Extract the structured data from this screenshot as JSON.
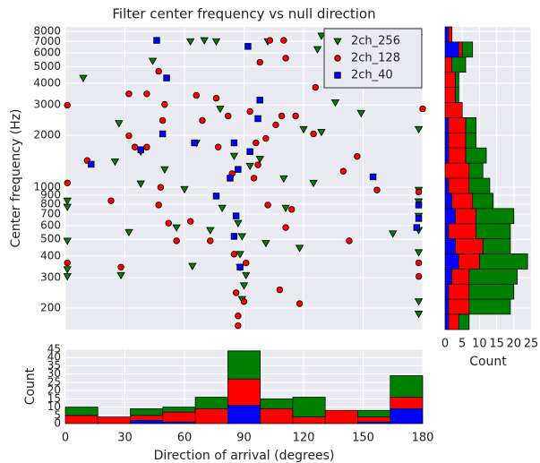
{
  "chart_data": [
    {
      "type": "scatter",
      "title": "Filter center frequency vs null direction",
      "ylabel": "Center frequency (Hz)",
      "xlim": [
        0,
        180
      ],
      "xticks": [
        0,
        30,
        60,
        90,
        120,
        150,
        180
      ],
      "xticklabels": false,
      "ylim": [
        150,
        8500
      ],
      "yscale": "log",
      "yticks": [
        200,
        300,
        400,
        500,
        600,
        700,
        800,
        900,
        1000,
        2000,
        3000,
        4000,
        5000,
        6000,
        7000,
        8000
      ],
      "grid": true,
      "legend": "upper right",
      "series": [
        {
          "name": "2ch_256",
          "color": "#008000",
          "marker": "triangle-down",
          "x": [
            9,
            27,
            25,
            1,
            1,
            1,
            1,
            1,
            28,
            38,
            38,
            44,
            63,
            70,
            76,
            78,
            66,
            60,
            64,
            73,
            79,
            85,
            87,
            88,
            89,
            88,
            90,
            89,
            91,
            93,
            98,
            102,
            101,
            110,
            111,
            118,
            120,
            125,
            129,
            136,
            127,
            129,
            149,
            165,
            178,
            178,
            178,
            178,
            178,
            178,
            178,
            178,
            178,
            32,
            56,
            50
          ],
          "values": [
            4300,
            2350,
            1410,
            836,
            770,
            490,
            335,
            305,
            310,
            1050,
            1610,
            5400,
            7000,
            7100,
            7000,
            2850,
            1810,
            975,
            350,
            565,
            760,
            1520,
            620,
            410,
            520,
            345,
            270,
            225,
            310,
            1330,
            1460,
            7000,
            475,
            1125,
            760,
            445,
            2170,
            1060,
            2090,
            3100,
            6300,
            7550,
            2690,
            540,
            2170,
            965,
            827,
            683,
            565,
            420,
            218,
            185,
            7400,
            550,
            585,
            1270
          ]
        },
        {
          "name": "2ch_128",
          "color": "#ff0000",
          "marker": "circle",
          "x": [
            1,
            1,
            1,
            11,
            23,
            28,
            32,
            32,
            35,
            41,
            41,
            47,
            49,
            50,
            48,
            47,
            52,
            56,
            63,
            66,
            69,
            73,
            76,
            77,
            82,
            84,
            85,
            86,
            87,
            87,
            90,
            91,
            93,
            95,
            96,
            97,
            98,
            103,
            101,
            102,
            106,
            109,
            116,
            108,
            111,
            110,
            111,
            114,
            118,
            125,
            126,
            132,
            140,
            147,
            143,
            157,
            178,
            178,
            178,
            178,
            180
          ],
          "values": [
            2990,
            1060,
            365,
            1430,
            836,
            345,
            3480,
            1990,
            1710,
            3480,
            1710,
            4700,
            2440,
            3020,
            1000,
            790,
            620,
            490,
            635,
            3410,
            2440,
            490,
            3280,
            1710,
            2590,
            1200,
            410,
            245,
            180,
            158,
            218,
            365,
            2750,
            1130,
            1810,
            1350,
            5300,
            7100,
            1920,
            790,
            2300,
            2590,
            2590,
            255,
            585,
            7100,
            5600,
            745,
            212,
            2040,
            3790,
            7000,
            1240,
            1510,
            490,
            965,
            940,
            790,
            365,
            305,
            2850
          ]
        },
        {
          "name": "2ch_40",
          "color": "#0000ff",
          "marker": "square",
          "x": [
            13,
            38,
            46,
            51,
            49,
            65,
            76,
            83,
            85,
            86,
            92,
            88,
            87,
            97,
            98,
            93,
            85,
            155,
            178,
            177,
            178
          ],
          "values": [
            1360,
            1650,
            7100,
            4300,
            2040,
            1810,
            890,
            1130,
            1810,
            683,
            6550,
            345,
            1270,
            2500,
            3200,
            1610,
            520,
            1150,
            790,
            585,
            660
          ]
        }
      ]
    },
    {
      "type": "histogram",
      "orientation": "horizontal",
      "xlabel": "Count",
      "xlim": [
        0,
        25
      ],
      "xticks": [
        0,
        5,
        10,
        15,
        20,
        25
      ],
      "ylim": [
        150,
        8500
      ],
      "yscale": "log",
      "grid": true,
      "bins": [
        150,
        184,
        225,
        275,
        336,
        412,
        504,
        616,
        754,
        923,
        1129,
        1382,
        1691,
        2070,
        2533,
        3099,
        3793,
        4641,
        5680,
        6950,
        8500
      ],
      "series": [
        {
          "color": "#0000ff",
          "values": [
            1,
            1,
            1,
            2,
            4,
            3,
            1,
            3,
            2,
            1,
            0,
            1,
            1,
            1,
            0,
            0,
            0,
            0,
            4,
            1
          ]
        },
        {
          "color": "#ff0000",
          "values": [
            3,
            6,
            6,
            5,
            6,
            8,
            8,
            6,
            6,
            6,
            7,
            5,
            5,
            5,
            5,
            3,
            3,
            2,
            1,
            1
          ]
        },
        {
          "color": "#008000",
          "values": [
            3,
            12,
            13,
            14,
            14,
            8,
            10,
            11,
            6,
            6,
            4,
            6,
            3,
            3,
            0,
            1,
            1,
            4,
            3,
            0
          ]
        }
      ]
    },
    {
      "type": "histogram",
      "orientation": "vertical",
      "xlabel": "Direction of arrival (degrees)",
      "ylabel": "Count",
      "xlim": [
        0,
        180
      ],
      "xticks": [
        0,
        30,
        60,
        90,
        120,
        150,
        180
      ],
      "ylim": [
        0,
        45
      ],
      "yticks": [
        0,
        5,
        10,
        15,
        20,
        25,
        30,
        35,
        40,
        45
      ],
      "grid": true,
      "bins": [
        0,
        16.36,
        32.73,
        49.09,
        65.45,
        81.82,
        98.18,
        114.55,
        130.91,
        147.27,
        163.64,
        180
      ],
      "series": [
        {
          "color": "#0000ff",
          "values": [
            0,
            0,
            2,
            1,
            0,
            11,
            0,
            0,
            0,
            1,
            9
          ]
        },
        {
          "color": "#ff0000",
          "values": [
            5,
            4,
            3,
            6,
            9,
            16,
            9,
            4,
            8,
            3,
            7
          ]
        },
        {
          "color": "#008000",
          "values": [
            5,
            0,
            4,
            3,
            7,
            17,
            6,
            12,
            0,
            4,
            13
          ]
        }
      ]
    }
  ]
}
